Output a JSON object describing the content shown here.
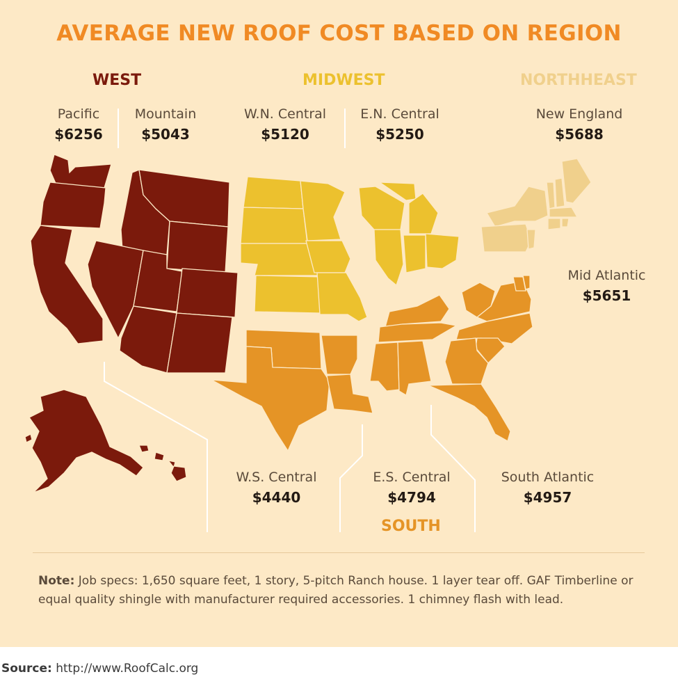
{
  "title": "AVERAGE NEW ROOF COST BASED ON REGION",
  "colors": {
    "west": "#7b1a0c",
    "midwest": "#ecc12e",
    "northeast": "#f0d08c",
    "south": "#e59426",
    "background": "#fde9c6",
    "title": "#f08a24"
  },
  "regions": {
    "west": "WEST",
    "midwest": "MIDWEST",
    "northeast": "NORTHHEAST",
    "south": "SOUTH"
  },
  "divisions": {
    "pacific": {
      "label": "Pacific",
      "value": "$6256"
    },
    "mountain": {
      "label": "Mountain",
      "value": "$5043"
    },
    "wn_central": {
      "label": "W.N. Central",
      "value": "$5120"
    },
    "en_central": {
      "label": "E.N. Central",
      "value": "$5250"
    },
    "new_england": {
      "label": "New England",
      "value": "$5688"
    },
    "mid_atlantic": {
      "label": "Mid Atlantic",
      "value": "$5651"
    },
    "ws_central": {
      "label": "W.S. Central",
      "value": "$4440"
    },
    "es_central": {
      "label": "E.S. Central",
      "value": "$4794"
    },
    "south_atlantic": {
      "label": "South Atlantic",
      "value": "$4957"
    }
  },
  "note": {
    "label": "Note:",
    "text": "Job specs: 1,650 square feet, 1 story, 5-pitch Ranch house. 1 layer tear off. GAF Timberline or equal quality shingle with manufacturer required accessories. 1 chimney flash with lead."
  },
  "source": {
    "label": "Source:",
    "url": "http://www.RoofCalc.org"
  }
}
